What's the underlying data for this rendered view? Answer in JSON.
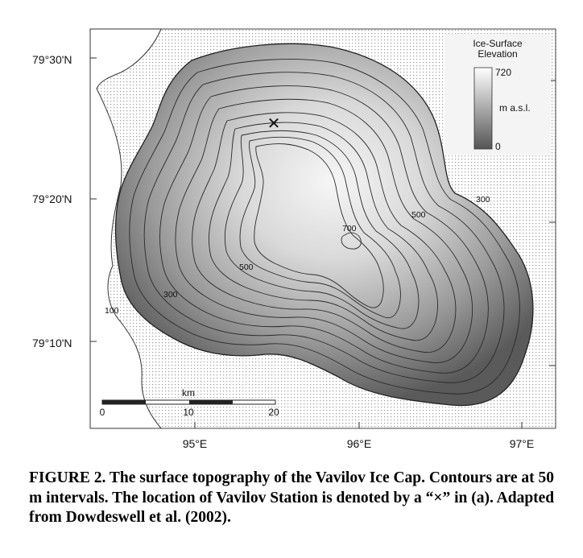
{
  "map": {
    "lat_labels": [
      "79°30'N",
      "79°20'N",
      "79°10'N"
    ],
    "lon_labels": [
      "95°E",
      "96°E",
      "97°E"
    ],
    "legend": {
      "title_line1": "Ice-Surface",
      "title_line2": "Elevation",
      "max": "720",
      "min": "0",
      "unit": "m a.s.l."
    },
    "contour_labels": [
      "100",
      "300",
      "500",
      "700",
      "500",
      "300"
    ],
    "station_marker": "✕",
    "scale_bar": {
      "unit": "km",
      "ticks": [
        "0",
        "10",
        "20"
      ]
    }
  },
  "caption": {
    "text": "FIGURE 2.  The surface topography of the Vavilov Ice Cap. Contours are at 50 m intervals. The location of Vavilov Station is denoted by a “×” in (a). Adapted from Dowdeswell et al. (2002)."
  }
}
